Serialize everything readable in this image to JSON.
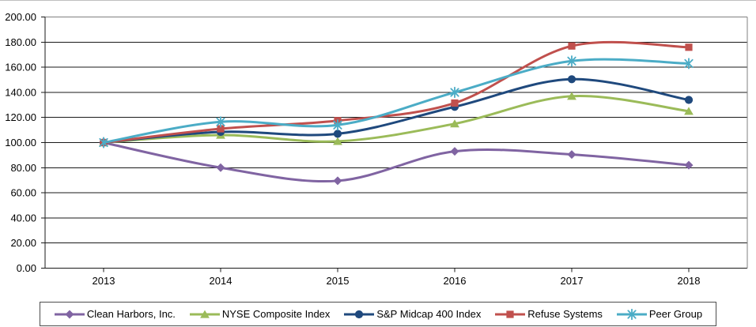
{
  "chart_data": {
    "type": "line",
    "title": "",
    "xlabel": "",
    "ylabel": "",
    "categories": [
      "2013",
      "2014",
      "2015",
      "2016",
      "2017",
      "2018"
    ],
    "series": [
      {
        "name": "Clean Harbors, Inc.",
        "color": "#8064A2",
        "marker": "diamond",
        "values": [
          100,
          80,
          69.5,
          93,
          90.5,
          82
        ]
      },
      {
        "name": "NYSE Composite Index",
        "color": "#9BBB59",
        "marker": "triangle",
        "values": [
          100,
          106,
          101,
          115,
          137,
          125
        ]
      },
      {
        "name": "S&P Midcap 400 Index",
        "color": "#1F497D",
        "marker": "circle",
        "values": [
          100,
          108.5,
          107,
          128.5,
          150.5,
          134
        ]
      },
      {
        "name": "Refuse Systems",
        "color": "#C0504D",
        "marker": "square",
        "values": [
          100,
          111,
          117.5,
          131.5,
          177,
          176
        ]
      },
      {
        "name": "Peer Group",
        "color": "#4BACC6",
        "marker": "star",
        "values": [
          100,
          116.5,
          114,
          140,
          165,
          163
        ]
      }
    ],
    "yaxis": {
      "min": 0,
      "max": 200,
      "step": 20
    },
    "y_tick_labels": [
      "0.00",
      "20.00",
      "40.00",
      "60.00",
      "80.00",
      "100.00",
      "120.00",
      "140.00",
      "160.00",
      "180.00",
      "200.00"
    ],
    "grid": true,
    "smoothed_lines": true,
    "legend_position": "bottom",
    "colors": {
      "gridline": "#1a1a1a",
      "plot_border": "#808080",
      "legend_border": "#4d4d4d",
      "text": "#000000"
    }
  }
}
